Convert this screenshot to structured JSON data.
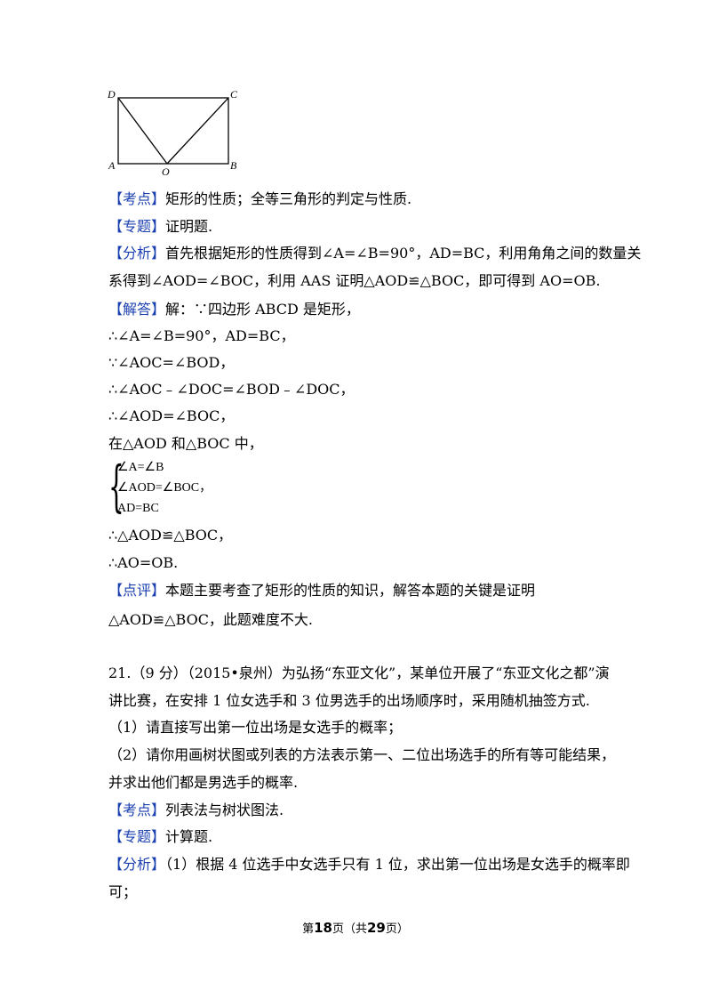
{
  "figure": {
    "labels": {
      "D": "D",
      "C": "C",
      "A": "A",
      "O": "O",
      "B": "B"
    }
  },
  "lines": [
    {
      "tag": "【考点】",
      "text": "矩形的性质；全等三角形的判定与性质."
    },
    {
      "tag": "【专题】",
      "text": "证明题."
    },
    {
      "tag": "【分析】",
      "text": "首先根据矩形的性质得到∠A=∠B=90°，AD=BC，利用角角之间的数量关"
    },
    {
      "tag": "",
      "text": "系得到∠AOD=∠BOC，利用 AAS 证明△AOD≌△BOC，即可得到 AO=OB."
    },
    {
      "tag": "【解答】",
      "text": "解：∵四边形 ABCD 是矩形，"
    },
    {
      "tag": "",
      "text": "∴∠A=∠B=90°，AD=BC，"
    },
    {
      "tag": "",
      "text": "∵∠AOC=∠BOD，"
    },
    {
      "tag": "",
      "text": "∴∠AOC﹣∠DOC=∠BOD﹣∠DOC，"
    },
    {
      "tag": "",
      "text": "∴∠AOD=∠BOC，"
    },
    {
      "tag": "",
      "text": "在△AOD 和△BOC 中，"
    },
    {
      "tag": "",
      "text": "∴△AOD≌△BOC，"
    },
    {
      "tag": "",
      "text": "∴AO=OB."
    },
    {
      "tag": "【点评】",
      "text": "本题主要考查了矩形的性质的知识，解答本题的关键是证明"
    },
    {
      "tag": "",
      "text": "△AOD≌△BOC，此题难度不大."
    },
    {
      "tag": "",
      "text": "21.（9 分）（2015•泉州）为弘扬“东亚文化”，某单位开展了“东亚文化之都”演"
    },
    {
      "tag": "",
      "text": "讲比赛，在安排 1 位女选手和 3 位男选手的出场顺序时，采用随机抽签方式."
    },
    {
      "tag": "",
      "text": "（1）请直接写出第一位出场是女选手的概率；"
    },
    {
      "tag": "",
      "text": "（2）请你用画树状图或列表的方法表示第一、二位出场选手的所有等可能结果，"
    },
    {
      "tag": "",
      "text": "并求出他们都是男选手的概率."
    },
    {
      "tag": "【考点】",
      "text": "列表法与树状图法."
    },
    {
      "tag": "【专题】",
      "text": "计算题."
    },
    {
      "tag": "【分析】",
      "text": "（1）根据 4 位选手中女选手只有 1 位，求出第一位出场是女选手的概率即"
    },
    {
      "tag": "",
      "text": "可；"
    }
  ],
  "system": [
    "∠A=∠B",
    "∠AOD=∠BOC，",
    "AD=BC"
  ],
  "footer": {
    "prefix": "第",
    "page": "18",
    "mid": "页（共",
    "total": "29",
    "suffix": "页）"
  }
}
